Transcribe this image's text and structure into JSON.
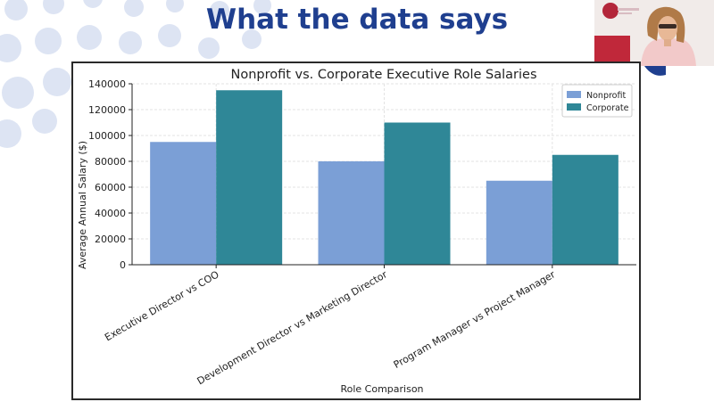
{
  "slide": {
    "title": "What the data says"
  },
  "colors": {
    "title": "#1f3f8f",
    "nonprofit": "#7b9fd6",
    "corporate": "#2f8797",
    "dots": "#dde4f3"
  },
  "chart_data": {
    "type": "bar",
    "title": "Nonprofit vs. Corporate Executive Role Salaries",
    "xlabel": "Role Comparison",
    "ylabel": "Average Annual Salary ($)",
    "categories": [
      "Executive Director vs COO",
      "Development Director vs Marketing Director",
      "Program Manager vs Project Manager"
    ],
    "series": [
      {
        "name": "Nonprofit",
        "values": [
          95000,
          80000,
          65000
        ]
      },
      {
        "name": "Corporate",
        "values": [
          135000,
          110000,
          85000
        ]
      }
    ],
    "ylim": [
      0,
      140000
    ],
    "yticks": [
      0,
      20000,
      40000,
      60000,
      80000,
      100000,
      120000,
      140000
    ],
    "legend": "top-right",
    "grid": true
  }
}
